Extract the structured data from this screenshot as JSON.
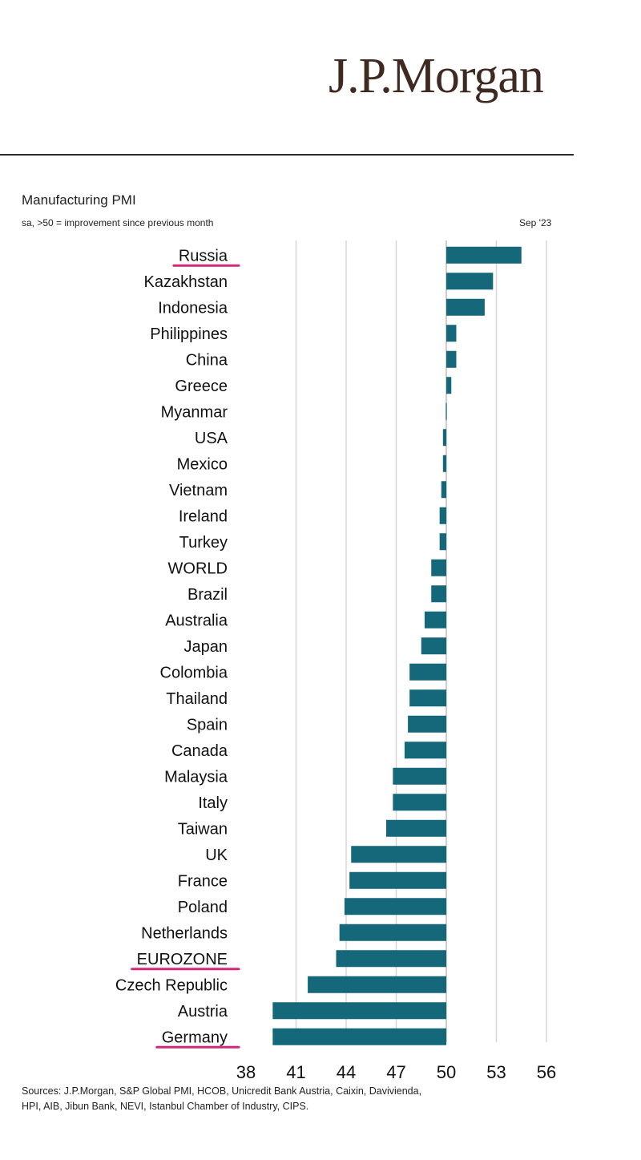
{
  "header": {
    "logo": "J.P.Morgan"
  },
  "chart_data": {
    "type": "bar",
    "orientation": "horizontal",
    "title": "Manufacturing PMI",
    "subtitle": "sa, >50 = improvement since previous month",
    "date": "Sep '23",
    "baseline": 50,
    "xlim": [
      38,
      56
    ],
    "xticks": [
      38,
      41,
      44,
      47,
      50,
      53,
      56
    ],
    "grid": true,
    "bar_color": "#15677a",
    "highlight_color": "#d1287a",
    "highlighted": [
      "Russia",
      "EUROZONE",
      "Germany"
    ],
    "categories": [
      "Russia",
      "Kazakhstan",
      "Indonesia",
      "Philippines",
      "China",
      "Greece",
      "Myanmar",
      "USA",
      "Mexico",
      "Vietnam",
      "Ireland",
      "Turkey",
      "WORLD",
      "Brazil",
      "Australia",
      "Japan",
      "Colombia",
      "Thailand",
      "Spain",
      "Canada",
      "Malaysia",
      "Italy",
      "Taiwan",
      "UK",
      "France",
      "Poland",
      "Netherlands",
      "EUROZONE",
      "Czech Republic",
      "Austria",
      "Germany"
    ],
    "values": [
      54.5,
      52.8,
      52.3,
      50.6,
      50.6,
      50.3,
      50.0,
      49.8,
      49.8,
      49.7,
      49.6,
      49.6,
      49.1,
      49.1,
      48.7,
      48.5,
      47.8,
      47.8,
      47.7,
      47.5,
      46.8,
      46.8,
      46.4,
      44.3,
      44.2,
      43.9,
      43.6,
      43.4,
      41.7,
      39.6,
      39.6
    ]
  },
  "footer": {
    "sources_line1": "Sources: J.P.Morgan, S&P Global PMI, HCOB, Unicredit Bank Austria, Caixin, Davivienda,",
    "sources_line2": "HPI, AIB, Jibun Bank, NEVI, Istanbul Chamber of Industry, CIPS."
  }
}
